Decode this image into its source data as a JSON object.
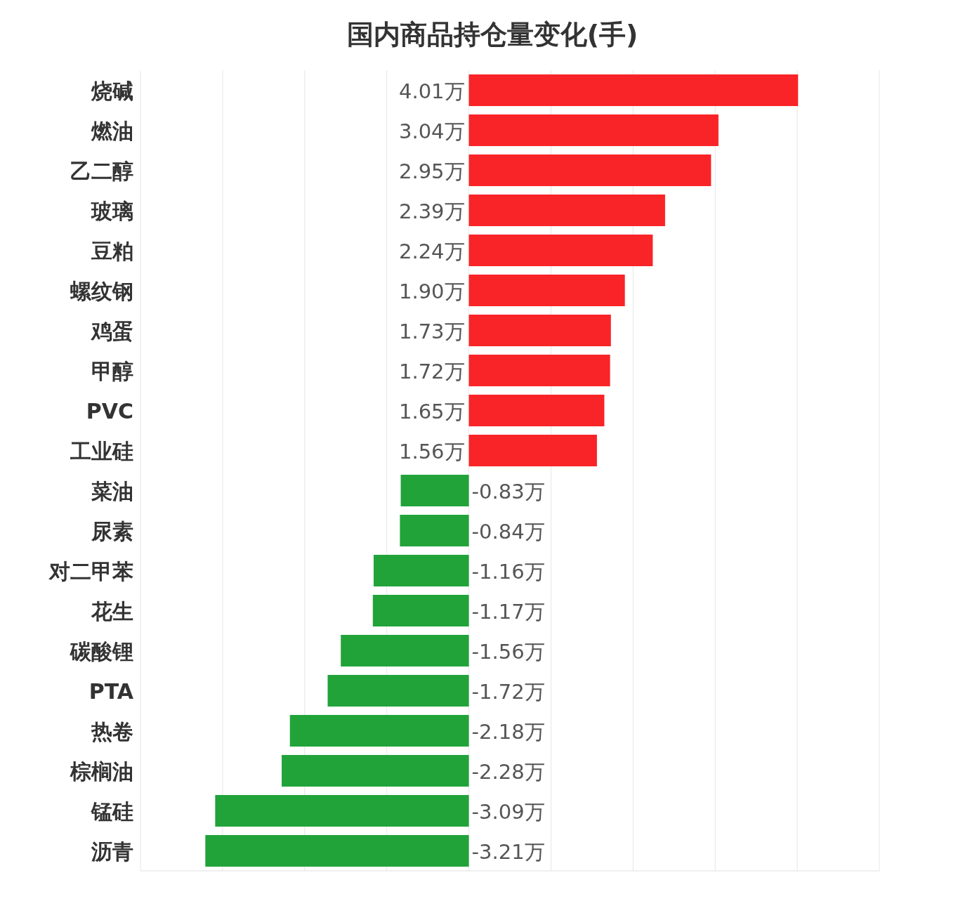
{
  "chart_data": {
    "type": "bar",
    "orientation": "horizontal",
    "title": "国内商品持仓量变化(手)",
    "categories": [
      "烧碱",
      "燃油",
      "乙二醇",
      "玻璃",
      "豆粕",
      "螺纹钢",
      "鸡蛋",
      "甲醇",
      "PVC",
      "工业硅",
      "菜油",
      "尿素",
      "对二甲苯",
      "花生",
      "碳酸锂",
      "PTA",
      "热卷",
      "棕榈油",
      "锰硅",
      "沥青"
    ],
    "values": [
      4.01,
      3.04,
      2.95,
      2.39,
      2.24,
      1.9,
      1.73,
      1.72,
      1.65,
      1.56,
      -0.83,
      -0.84,
      -1.16,
      -1.17,
      -1.56,
      -1.72,
      -2.18,
      -2.28,
      -3.09,
      -3.21
    ],
    "value_labels": [
      "4.01万",
      "3.04万",
      "2.95万",
      "2.39万",
      "2.24万",
      "1.90万",
      "1.73万",
      "1.72万",
      "1.65万",
      "1.56万",
      "-0.83万",
      "-0.84万",
      "-1.16万",
      "-1.17万",
      "-1.56万",
      "-1.72万",
      "-2.18万",
      "-2.28万",
      "-3.09万",
      "-3.21万"
    ],
    "colors": [
      "#f92427",
      "#f92427",
      "#f92427",
      "#f92427",
      "#f92427",
      "#f92427",
      "#f92427",
      "#f92427",
      "#f92427",
      "#f92427",
      "#21a33a",
      "#21a33a",
      "#21a33a",
      "#21a33a",
      "#21a33a",
      "#21a33a",
      "#21a33a",
      "#21a33a",
      "#21a33a",
      "#21a33a"
    ],
    "xlim": [
      -4,
      5
    ],
    "xticks": [
      {
        "value": -4,
        "label": null
      },
      {
        "value": -3,
        "label": null
      },
      {
        "value": -2,
        "label": null
      },
      {
        "value": -1,
        "label": null
      },
      {
        "value": 0,
        "label": null
      },
      {
        "value": 1,
        "label": null
      },
      {
        "value": 2,
        "label": null
      },
      {
        "value": 3,
        "label": null
      },
      {
        "value": 4,
        "label": null
      },
      {
        "value": 5,
        "label": null
      }
    ],
    "grid": "x",
    "tick_labels": "y"
  }
}
